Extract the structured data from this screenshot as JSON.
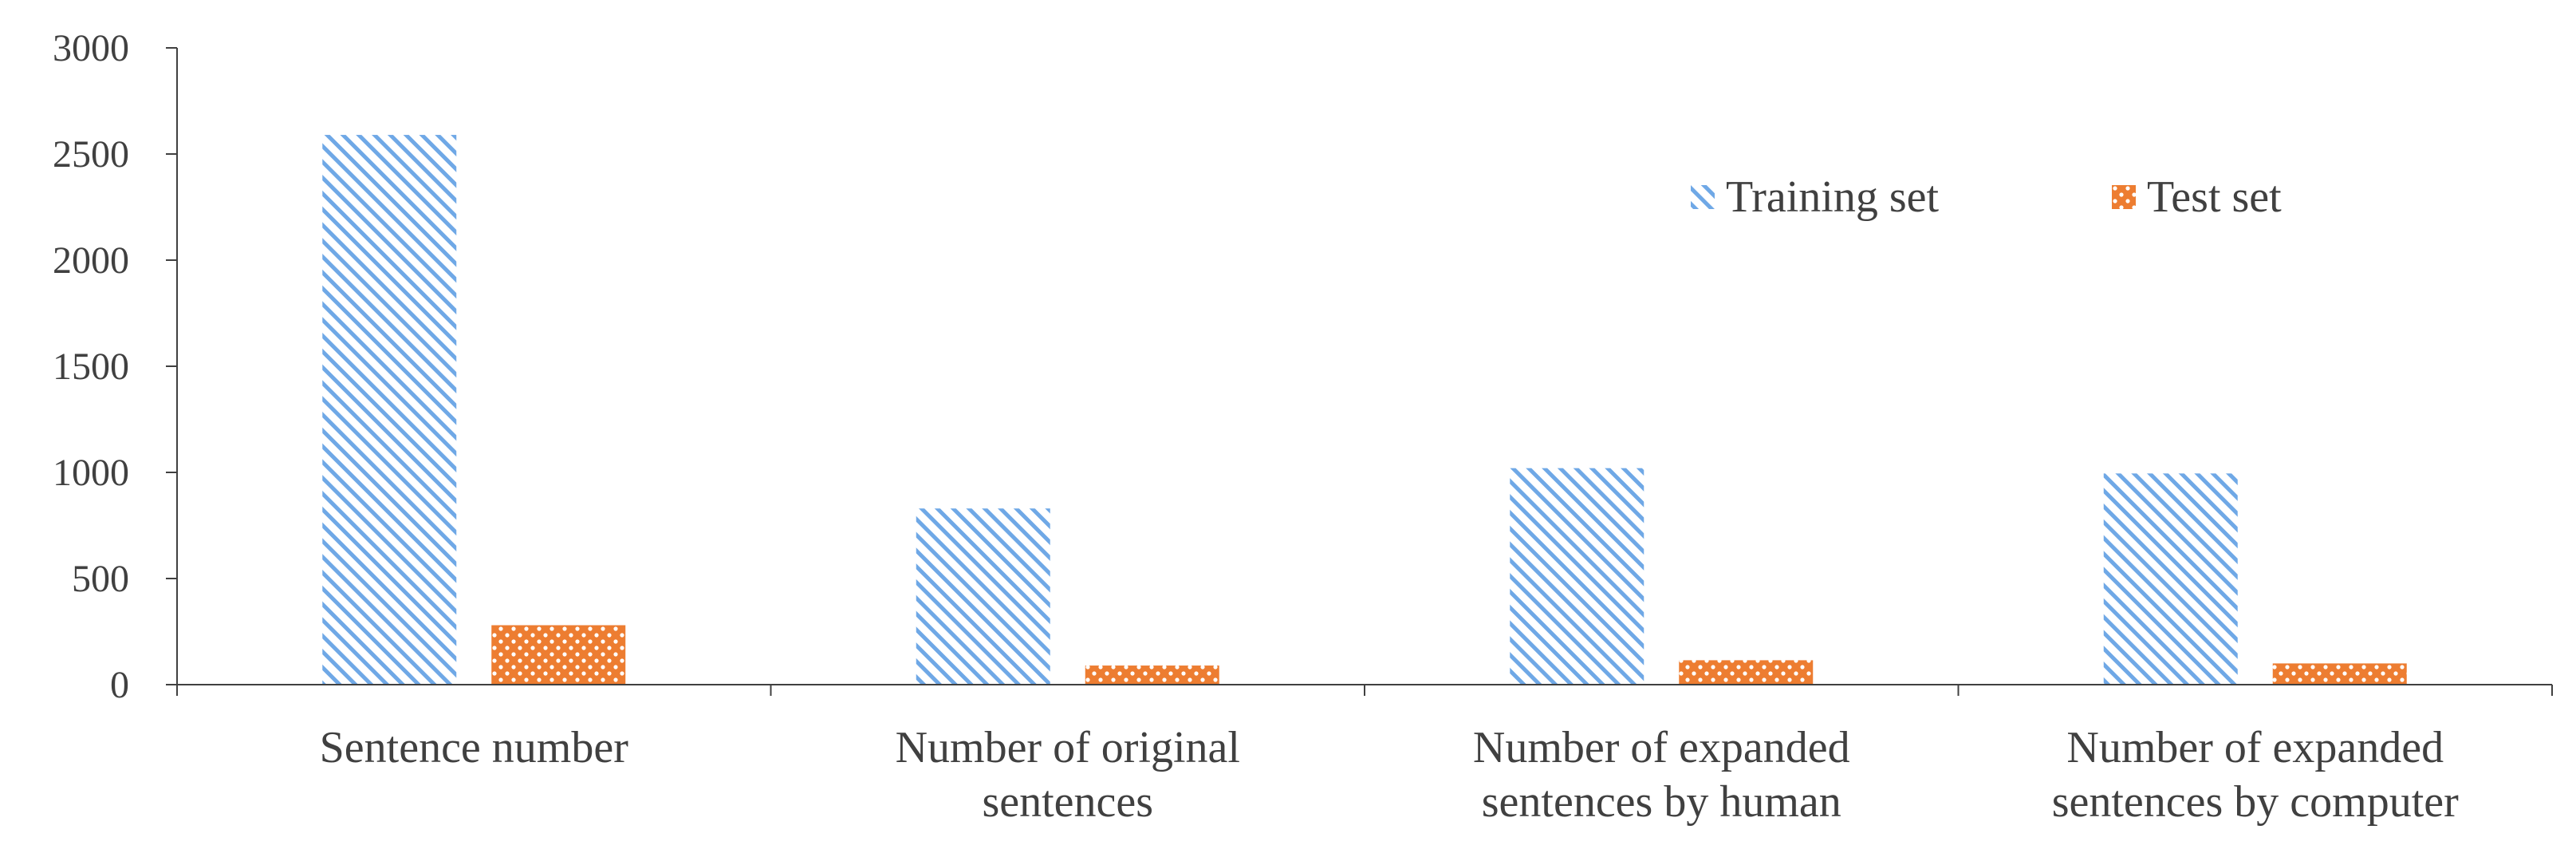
{
  "chart_data": {
    "type": "bar",
    "title": "",
    "xlabel": "",
    "ylabel": "",
    "ylim": [
      0,
      3000
    ],
    "yticks": [
      0,
      500,
      1000,
      1500,
      2000,
      2500,
      3000
    ],
    "grid": false,
    "legend_position": "top-right",
    "categories": [
      [
        "Sentence number"
      ],
      [
        "Number of original",
        "sentences"
      ],
      [
        "Number of expanded",
        "sentences by human"
      ],
      [
        "Number of expanded",
        "sentences by computer"
      ]
    ],
    "series": [
      {
        "name": "Training set",
        "values": [
          2590,
          830,
          1020,
          995
        ],
        "color": "#6fa8e6",
        "pattern": "diagonal-hatch"
      },
      {
        "name": "Test set",
        "values": [
          280,
          90,
          115,
          100
        ],
        "color": "#ed7d31",
        "pattern": "cross-dots"
      }
    ],
    "colors": {
      "axis": "#404040",
      "text": "#404040"
    }
  }
}
